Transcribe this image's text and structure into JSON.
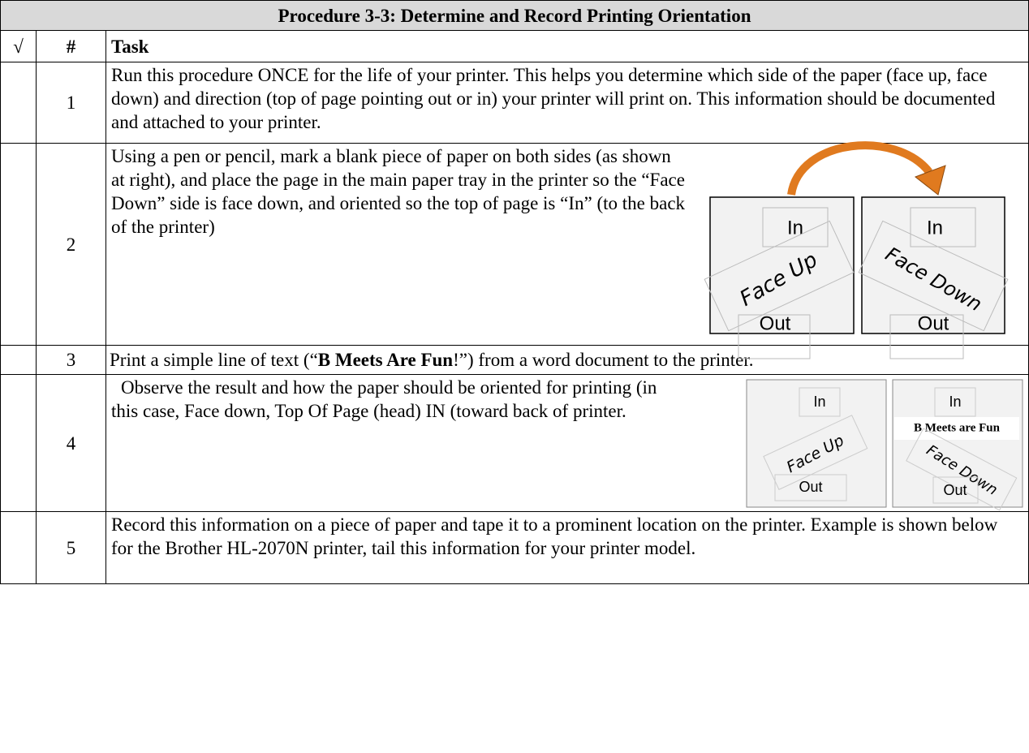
{
  "title": "Procedure 3-3:  Determine and Record Printing Orientation",
  "header": [
    "√",
    "#",
    "Task"
  ],
  "rows": [
    {
      "number": "1",
      "text": "Run this procedure ONCE for the life of your printer.   This helps you determine which side of the paper (face up, face down) and direction (top of page pointing out or in) your printer will print on.    This information should be documented and attached to your printer."
    },
    {
      "number": "2",
      "text": "Using a pen or pencil, mark a blank piece of paper on both sides (as shown at right), and place the page in the main paper tray in the printer so the “Face Down” side is face down, and oriented so the top of page is “In” (to the back of the printer)",
      "figure": {
        "left": {
          "top": "In",
          "middle": "Face Up",
          "bottom": "Out"
        },
        "right": {
          "top": "In",
          "middle": "Face Down",
          "bottom": "Out"
        }
      }
    },
    {
      "number": "3",
      "text_before": "Print a simple line of text (“",
      "text_bold": "B Meets Are Fun",
      "text_after": "!”) from a word document to the printer."
    },
    {
      "number": "4",
      "text": "Observe the result and how the paper should be oriented for printing (in this case, Face down, Top Of Page (head) IN (toward back of printer.",
      "figure": {
        "left": {
          "top": "In",
          "middle": "Face Up",
          "bottom": "Out"
        },
        "right": {
          "top": "In",
          "printed": "B Meets are Fun",
          "middle": "Face Down",
          "bottom": "Out"
        }
      }
    },
    {
      "number": "5",
      "text": "Record this information on a piece of paper and tape it to a prominent location on the printer.  Example is shown below for the Brother HL-2070N printer, tail this information for your printer model."
    }
  ]
}
